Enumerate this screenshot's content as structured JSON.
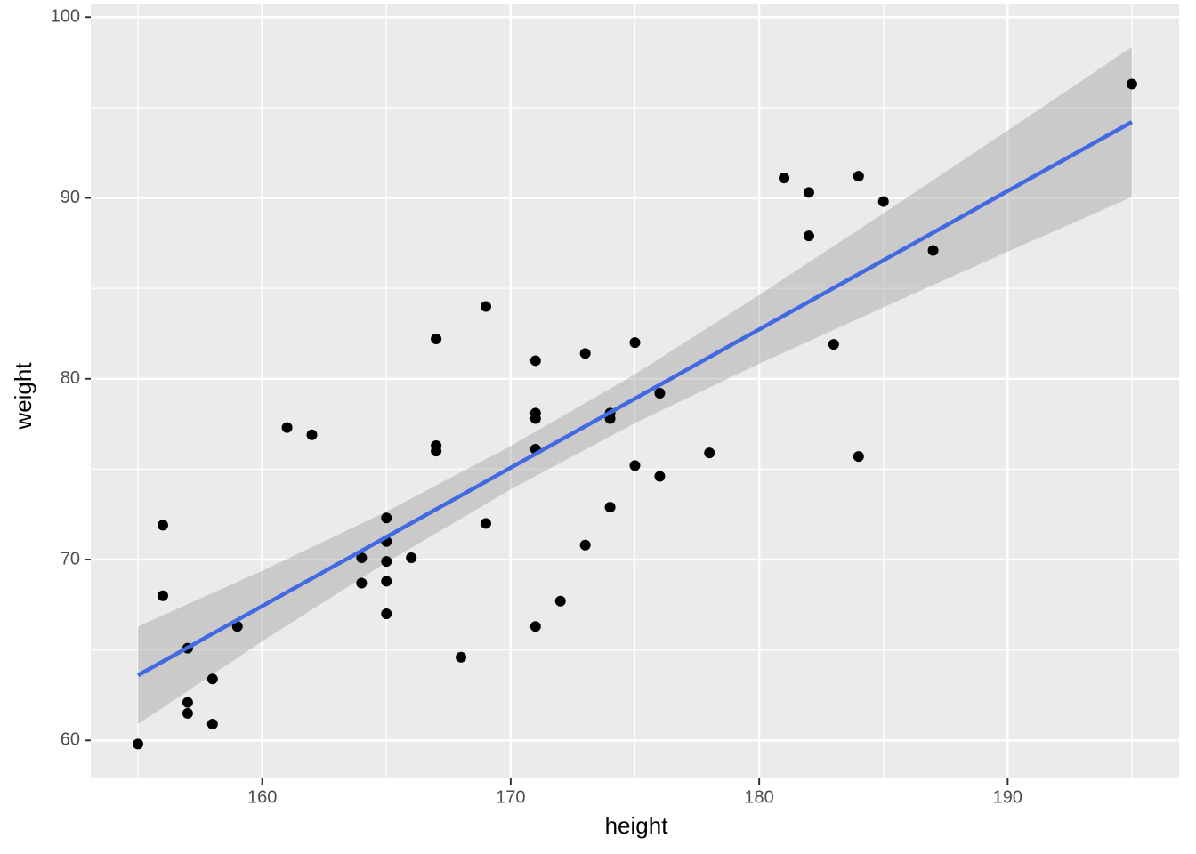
{
  "chart_data": {
    "type": "scatter",
    "x_label": "height",
    "y_label": "weight",
    "x": [
      155,
      156,
      156,
      157,
      157,
      157,
      158,
      158,
      159,
      161,
      162,
      164,
      164,
      165,
      165,
      165,
      165,
      165,
      166,
      167,
      167,
      167,
      168,
      169,
      169,
      171,
      171,
      171,
      171,
      171,
      172,
      173,
      173,
      174,
      174,
      174,
      175,
      175,
      176,
      176,
      178,
      181,
      182,
      182,
      183,
      184,
      184,
      185,
      187,
      195
    ],
    "y": [
      59.8,
      71.9,
      68.0,
      65.1,
      62.1,
      61.5,
      63.4,
      60.9,
      66.3,
      77.3,
      76.9,
      70.1,
      68.7,
      72.3,
      71.0,
      69.9,
      68.8,
      67.0,
      70.1,
      82.2,
      76.3,
      76.0,
      64.6,
      84.0,
      72.0,
      81.0,
      78.1,
      77.8,
      76.1,
      66.3,
      67.7,
      81.4,
      70.8,
      78.1,
      77.8,
      72.9,
      82.0,
      75.2,
      79.2,
      74.6,
      75.9,
      91.1,
      90.3,
      87.9,
      81.9,
      91.2,
      75.7,
      89.8,
      87.1,
      96.3
    ],
    "color": "#000000",
    "fit": {
      "color": "#4169E1",
      "band_color": "#999999",
      "x": [
        155,
        160,
        165,
        170,
        175,
        180,
        185,
        190,
        195
      ],
      "y": [
        63.6,
        67.43,
        71.25,
        75.08,
        78.9,
        82.73,
        86.55,
        90.38,
        94.2
      ],
      "lower": [
        60.9,
        65.48,
        69.85,
        73.88,
        77.55,
        80.83,
        83.95,
        87.03,
        90.05
      ],
      "upper": [
        66.3,
        69.38,
        72.65,
        76.28,
        80.25,
        84.63,
        89.15,
        93.73,
        98.35
      ]
    },
    "xlim": [
      153.1,
      196.9
    ],
    "ylim": [
      57.9,
      100.7
    ],
    "xticks": [
      160,
      170,
      180,
      190
    ],
    "yticks": [
      60,
      70,
      80,
      90,
      100
    ],
    "xminor": [
      155,
      165,
      175,
      185,
      195
    ],
    "yminor": [
      65,
      75,
      85,
      95
    ],
    "grid": true
  }
}
